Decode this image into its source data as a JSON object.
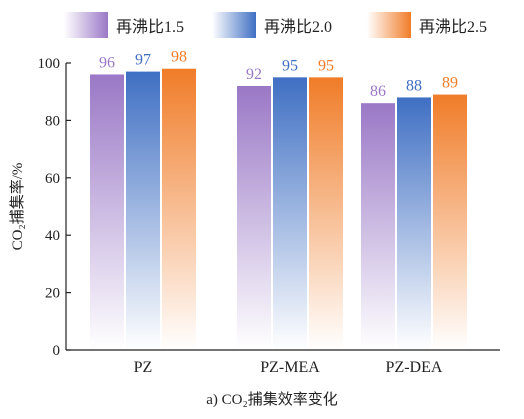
{
  "chart_data": {
    "type": "bar",
    "caption": "a) CO₂捕集效率变化",
    "ylabel": "CO₂捕集率/%",
    "xlabel": "",
    "ylim": [
      0,
      100
    ],
    "yticks": [
      "0",
      "20",
      "40",
      "60",
      "80",
      "100"
    ],
    "categories": [
      "PZ",
      "PZ-MEA",
      "PZ-DEA"
    ],
    "series": [
      {
        "name": "再沸比1.5",
        "values": [
          96,
          92,
          86
        ],
        "color": "#9a78c6"
      },
      {
        "name": "再沸比2.0",
        "values": [
          97,
          95,
          88
        ],
        "color": "#3f6fc3"
      },
      {
        "name": "再沸比2.5",
        "values": [
          98,
          95,
          89
        ],
        "color": "#f07c28"
      }
    ],
    "legend_position": "top",
    "grid": false
  }
}
